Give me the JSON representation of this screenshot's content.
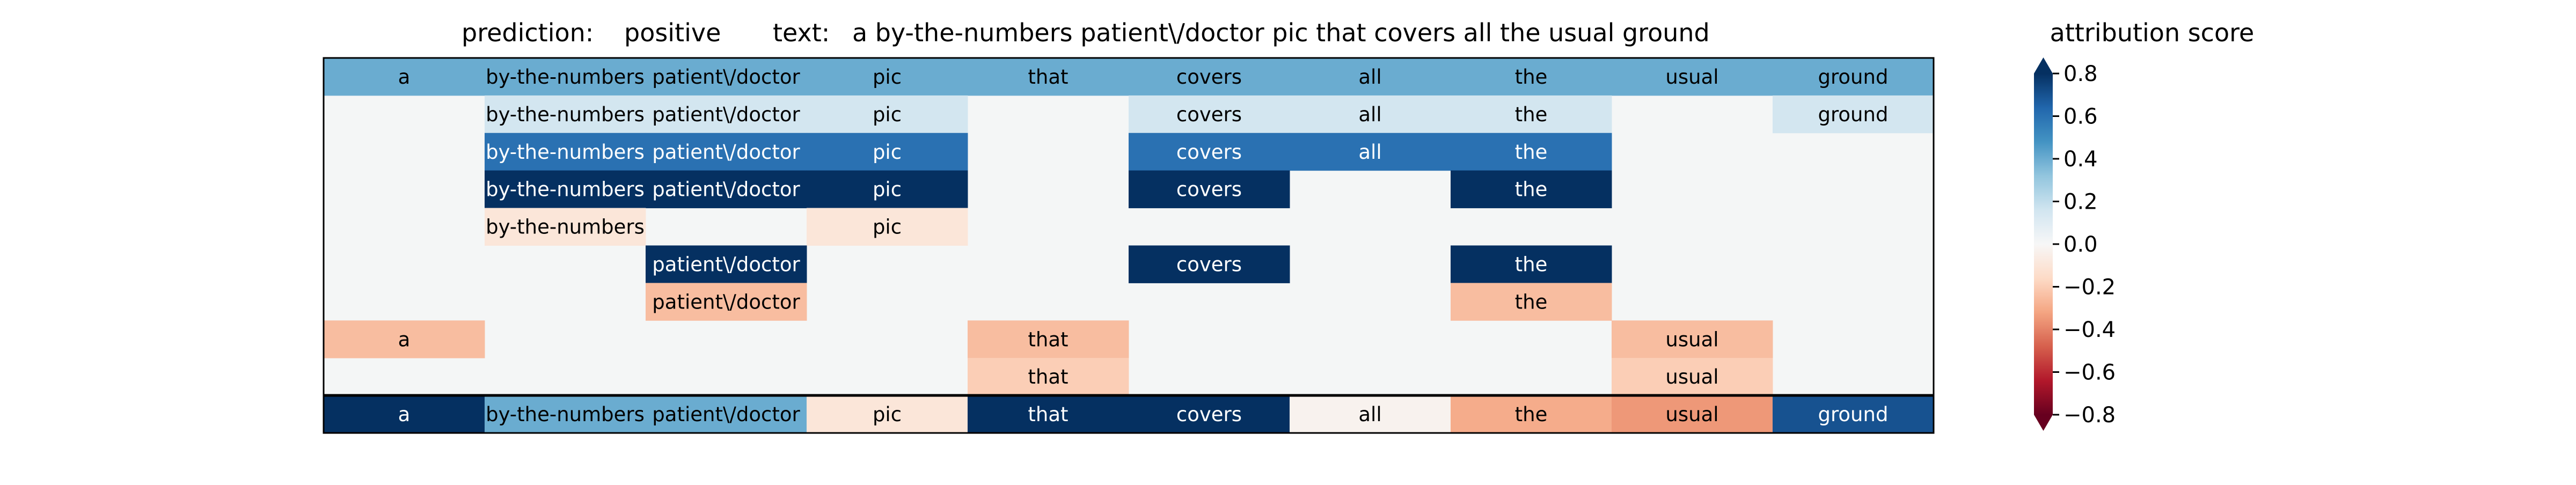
{
  "chart_data": {
    "type": "heatmap",
    "title": {
      "prediction_label": "prediction:",
      "prediction_value": "positive",
      "text_label": "text:",
      "text_value": "a by-the-numbers patient\\/doctor pic that covers all the usual ground"
    },
    "tokens": [
      "a",
      "by-the-numbers",
      "patient\\/doctor",
      "pic",
      "that",
      "covers",
      "all",
      "the",
      "usual",
      "ground"
    ],
    "rows": [
      [
        0.4,
        0.4,
        0.4,
        0.4,
        0.4,
        0.4,
        0.4,
        0.4,
        0.4,
        0.4
      ],
      [
        null,
        0.15,
        0.15,
        0.15,
        null,
        0.15,
        0.15,
        0.15,
        null,
        0.15
      ],
      [
        null,
        0.6,
        0.6,
        0.6,
        null,
        0.6,
        0.6,
        0.6,
        null,
        null
      ],
      [
        null,
        0.85,
        0.85,
        0.85,
        null,
        0.85,
        null,
        0.85,
        null,
        null
      ],
      [
        null,
        -0.1,
        null,
        -0.1,
        null,
        null,
        null,
        null,
        null,
        null
      ],
      [
        null,
        null,
        0.85,
        null,
        null,
        0.85,
        null,
        0.85,
        null,
        null
      ],
      [
        null,
        null,
        -0.25,
        null,
        null,
        null,
        null,
        -0.25,
        null,
        null
      ],
      [
        -0.25,
        null,
        null,
        null,
        -0.25,
        null,
        null,
        null,
        -0.25,
        null
      ],
      [
        null,
        null,
        null,
        null,
        -0.2,
        null,
        null,
        null,
        -0.2,
        null
      ],
      [
        0.85,
        0.4,
        0.4,
        -0.1,
        0.85,
        0.85,
        -0.03,
        -0.3,
        -0.35,
        0.7
      ]
    ],
    "colorbar": {
      "label": "attribution score",
      "range": [
        -0.8,
        0.8
      ],
      "ticks": [
        -0.8,
        -0.6,
        -0.4,
        -0.2,
        0.0,
        0.2,
        0.4,
        0.6,
        0.8
      ],
      "tick_labels": [
        "−0.8",
        "−0.6",
        "−0.4",
        "−0.2",
        "0.0",
        "0.2",
        "0.4",
        "0.6",
        "0.8"
      ],
      "colormap": "RdBu",
      "extend": "both"
    }
  }
}
